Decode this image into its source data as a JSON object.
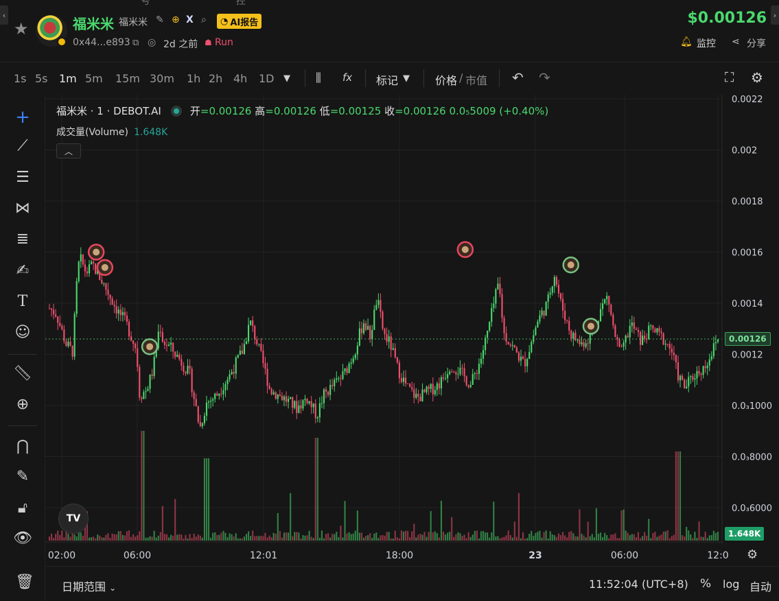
{
  "header": {
    "top_cut": [
      "号",
      "控"
    ],
    "token_name": "福米米",
    "token_symbol": "福米米",
    "ai_report_label": "AI报告",
    "address": "0x44...e893",
    "age": "2d 之前",
    "run_label": "Run",
    "price": "$0.00126",
    "monitor_label": "监控",
    "share_label": "分享"
  },
  "toolbar": {
    "timeframes": [
      "1s",
      "5s",
      "1m",
      "5m",
      "15m",
      "30m",
      "1h",
      "2h",
      "4h",
      "1D"
    ],
    "active_timeframe": "1m",
    "indicator_icon": "fx",
    "mark_label": "标记",
    "price_label": "价格",
    "slash": "/",
    "mcap_label": "市值"
  },
  "legend": {
    "title": "福米米 · 1 · DEBOT.AI",
    "open_label": "开",
    "open": "=0.00126",
    "high_label": "高",
    "high": "=0.00126",
    "low_label": "低",
    "low": "=0.00125",
    "close_label": "收",
    "close": "=0.00126",
    "change": "0.0₅5009 (+0.40%)",
    "volume_label": "成交量(Volume)",
    "volume_value": "1.648K",
    "tv_logo": "TV"
  },
  "chart_data": {
    "type": "candlestick",
    "y_axis_ticks": [
      "0.0022",
      "0.002",
      "0.0018",
      "0.0016",
      "0.0014",
      "0.0012",
      "0.0₃1000",
      "0.0₃8000",
      "0.0₃6000"
    ],
    "y_tick_values": [
      0.0022,
      0.002,
      0.0018,
      0.0016,
      0.0014,
      0.0012,
      0.001,
      0.0008,
      0.0006
    ],
    "x_axis_ticks": [
      "02:00",
      "06:00",
      "12:01",
      "18:00",
      "23",
      "06:00",
      "12:0"
    ],
    "last_price": 0.00126,
    "last_price_label": "0.00126",
    "volume_label": "1.648K",
    "close_trace": [
      [
        0,
        0.00138
      ],
      [
        0.01,
        0.00136
      ],
      [
        0.025,
        0.00124
      ],
      [
        0.035,
        0.00121
      ],
      [
        0.04,
        0.00145
      ],
      [
        0.045,
        0.00158
      ],
      [
        0.055,
        0.00152
      ],
      [
        0.065,
        0.00155
      ],
      [
        0.08,
        0.00148
      ],
      [
        0.1,
        0.00138
      ],
      [
        0.115,
        0.00132
      ],
      [
        0.13,
        0.00122
      ],
      [
        0.135,
        0.00104
      ],
      [
        0.145,
        0.00106
      ],
      [
        0.155,
        0.00114
      ],
      [
        0.165,
        0.00132
      ],
      [
        0.17,
        0.00125
      ],
      [
        0.18,
        0.00123
      ],
      [
        0.195,
        0.00118
      ],
      [
        0.21,
        0.00112
      ],
      [
        0.22,
        0.00098
      ],
      [
        0.225,
        0.00091
      ],
      [
        0.235,
        0.00101
      ],
      [
        0.25,
        0.00104
      ],
      [
        0.27,
        0.00112
      ],
      [
        0.29,
        0.00122
      ],
      [
        0.3,
        0.00133
      ],
      [
        0.31,
        0.00125
      ],
      [
        0.32,
        0.00116
      ],
      [
        0.33,
        0.00106
      ],
      [
        0.35,
        0.00103
      ],
      [
        0.37,
        0.00099
      ],
      [
        0.385,
        0.00103
      ],
      [
        0.4,
        0.00096
      ],
      [
        0.41,
        0.00104
      ],
      [
        0.425,
        0.00108
      ],
      [
        0.44,
        0.00112
      ],
      [
        0.455,
        0.0012
      ],
      [
        0.47,
        0.00133
      ],
      [
        0.48,
        0.00127
      ],
      [
        0.49,
        0.00142
      ],
      [
        0.5,
        0.00128
      ],
      [
        0.51,
        0.00124
      ],
      [
        0.52,
        0.00115
      ],
      [
        0.535,
        0.00107
      ],
      [
        0.55,
        0.00103
      ],
      [
        0.57,
        0.00106
      ],
      [
        0.585,
        0.00109
      ],
      [
        0.6,
        0.00116
      ],
      [
        0.615,
        0.00113
      ],
      [
        0.63,
        0.00108
      ],
      [
        0.645,
        0.00118
      ],
      [
        0.655,
        0.00128
      ],
      [
        0.665,
        0.0014
      ],
      [
        0.672,
        0.00148
      ],
      [
        0.68,
        0.00128
      ],
      [
        0.695,
        0.00122
      ],
      [
        0.71,
        0.00116
      ],
      [
        0.72,
        0.00124
      ],
      [
        0.73,
        0.00133
      ],
      [
        0.745,
        0.0014
      ],
      [
        0.755,
        0.00152
      ],
      [
        0.765,
        0.0014
      ],
      [
        0.78,
        0.00128
      ],
      [
        0.795,
        0.00124
      ],
      [
        0.81,
        0.00127
      ],
      [
        0.825,
        0.00138
      ],
      [
        0.835,
        0.00143
      ],
      [
        0.845,
        0.00128
      ],
      [
        0.855,
        0.0012
      ],
      [
        0.87,
        0.00132
      ],
      [
        0.885,
        0.00125
      ],
      [
        0.9,
        0.0013
      ],
      [
        0.915,
        0.00127
      ],
      [
        0.93,
        0.00122
      ],
      [
        0.94,
        0.00112
      ],
      [
        0.95,
        0.00107
      ],
      [
        0.965,
        0.00112
      ],
      [
        0.98,
        0.00115
      ],
      [
        1.0,
        0.00126
      ]
    ],
    "trade_markers": [
      {
        "x": 0.07,
        "y": 0.0016,
        "color": "#e9475f"
      },
      {
        "x": 0.083,
        "y": 0.00154,
        "color": "#e9475f"
      },
      {
        "x": 0.15,
        "y": 0.00123,
        "color": "#78c183"
      },
      {
        "x": 0.622,
        "y": 0.00161,
        "color": "#e9475f"
      },
      {
        "x": 0.78,
        "y": 0.00155,
        "color": "#78c183"
      },
      {
        "x": 0.81,
        "y": 0.00131,
        "color": "#78c183"
      }
    ]
  },
  "bottombar": {
    "date_range_label": "日期范围",
    "clock": "11:52:04 (UTC+8)",
    "percent_label": "%",
    "log_label": "log",
    "auto_label": "自动"
  },
  "colors": {
    "up": "#4bd86e",
    "down": "#f0506e",
    "accent_yellow": "#f5c01b",
    "background": "#161616"
  }
}
